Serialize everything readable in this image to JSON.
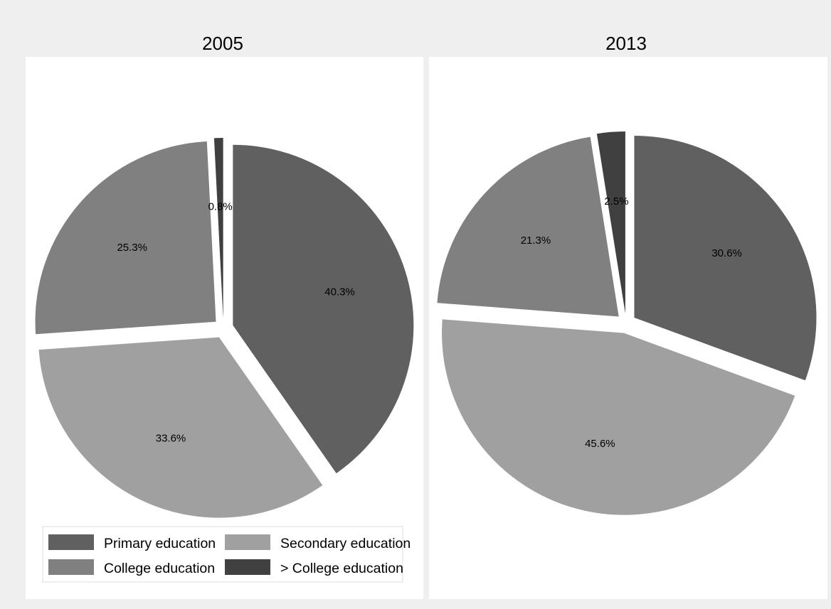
{
  "chart_data": [
    {
      "type": "pie",
      "title": "2005",
      "categories": [
        "Primary education",
        "Secondary education",
        "College education",
        "> College education"
      ],
      "values": [
        40.3,
        33.6,
        25.3,
        0.8
      ],
      "labels": [
        "40.3%",
        "33.6%",
        "25.3%",
        "0.8%"
      ],
      "exploded": true,
      "start": "12 o'clock",
      "direction": "clockwise"
    },
    {
      "type": "pie",
      "title": "2013",
      "categories": [
        "Primary education",
        "Secondary education",
        "College education",
        "> College education"
      ],
      "values": [
        30.6,
        45.6,
        21.3,
        2.5
      ],
      "labels": [
        "30.6%",
        "45.6%",
        "21.3%",
        "2.5%"
      ],
      "exploded": true,
      "start": "12 o'clock",
      "direction": "clockwise"
    }
  ],
  "legend": {
    "placement": "bottom-left",
    "items": [
      {
        "label": "Primary education",
        "color": "#606060"
      },
      {
        "label": "Secondary education",
        "color": "#a0a0a0"
      },
      {
        "label": "College education",
        "color": "#808080"
      },
      {
        "label": "> College education",
        "color": "#404040"
      }
    ]
  },
  "colors": {
    "background": "#efefef",
    "panel": "#ffffff",
    "series": [
      "#606060",
      "#a0a0a0",
      "#808080",
      "#404040"
    ]
  }
}
